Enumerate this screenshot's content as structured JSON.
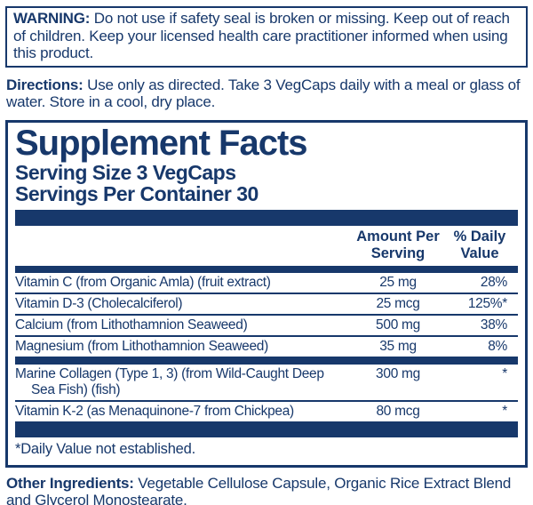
{
  "colors": {
    "navy": "#17386b",
    "background": "#ffffff"
  },
  "warning": {
    "label": "WARNING:",
    "text": "Do not use if safety seal is broken or missing. Keep out of reach of children. Keep your licensed health care practitioner informed when using this product."
  },
  "directions": {
    "label": "Directions:",
    "text": "Use only as directed. Take 3 VegCaps daily with a meal or glass of water. Store in a cool, dry place."
  },
  "supplement_facts": {
    "title": "Supplement Facts",
    "serving_size": "Serving Size 3 VegCaps",
    "servings_per_container": "Servings Per Container 30",
    "columns": {
      "amount": "Amount Per Serving",
      "daily_value": "% Daily Value"
    },
    "rows": [
      {
        "name": "Vitamin C (from Organic Amla) (fruit extract)",
        "amount": "25 mg",
        "daily_value": "28%"
      },
      {
        "name": "Vitamin D-3 (Cholecalciferol)",
        "amount": "25 mcg",
        "daily_value": "125%*"
      },
      {
        "name": "Calcium (from Lithothamnion Seaweed)",
        "amount": "500 mg",
        "daily_value": "38%"
      },
      {
        "name": "Magnesium (from Lithothamnion Seaweed)",
        "amount": "35 mg",
        "daily_value": "8%"
      },
      {
        "name": "Marine Collagen (Type 1, 3) (from Wild-Caught Deep Sea Fish) (fish)",
        "amount": "300 mg",
        "daily_value": "*"
      },
      {
        "name": "Vitamin K-2 (as Menaquinone-7 from Chickpea)",
        "amount": "80 mcg",
        "daily_value": "*"
      }
    ],
    "footnote": "*Daily Value not established."
  },
  "other_ingredients": {
    "label": "Other Ingredients:",
    "text": "Vegetable Cellulose Capsule, Organic Rice Extract Blend and Glycerol Monostearate."
  }
}
